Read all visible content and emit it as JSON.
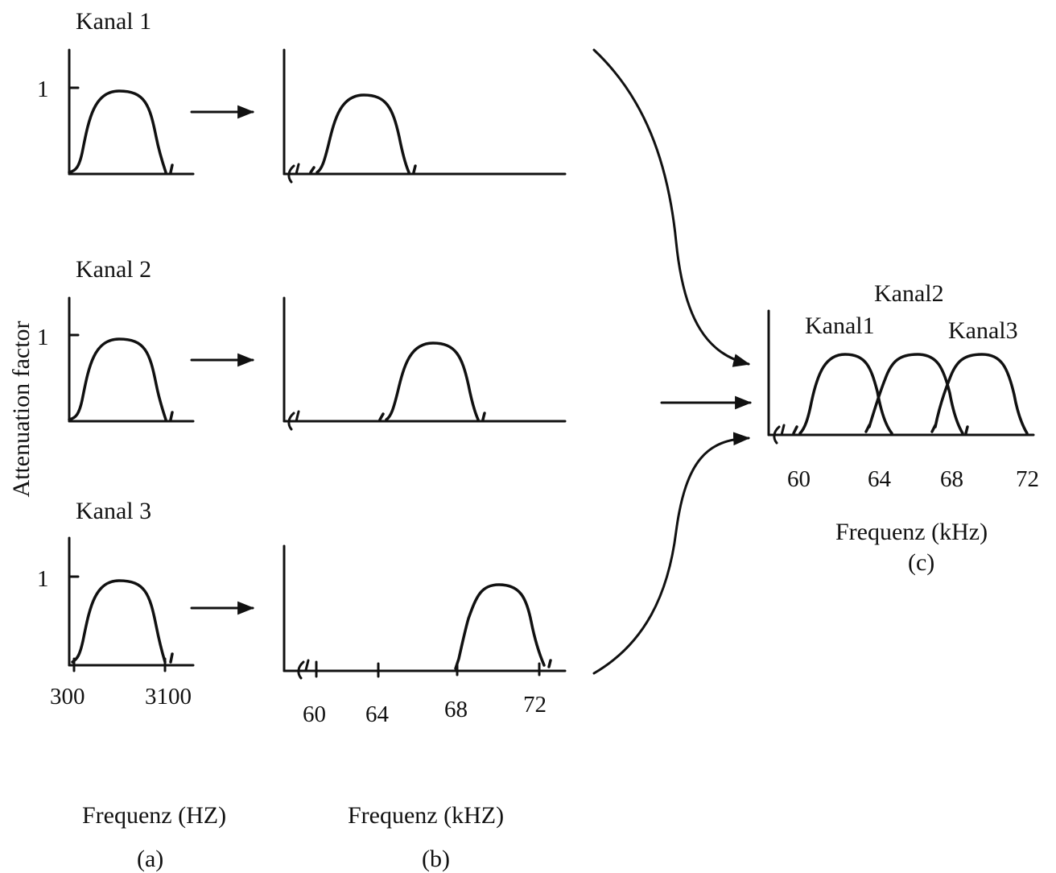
{
  "y_axis_label": "Attenuation factor",
  "panel_a": {
    "channels": [
      {
        "title": "Kanal 1",
        "y_tick": "1"
      },
      {
        "title": "Kanal 2",
        "y_tick": "1"
      },
      {
        "title": "Kanal 3",
        "y_tick": "1"
      }
    ],
    "x_ticks": [
      "300",
      "3100"
    ],
    "x_label": "Frequenz (HZ)",
    "caption": "(a)"
  },
  "panel_b": {
    "x_ticks": [
      "60",
      "64",
      "68",
      "72"
    ],
    "x_label": "Frequenz (kHZ)",
    "caption": "(b)"
  },
  "panel_c": {
    "channel_labels": [
      "Kanal1",
      "Kanal2",
      "Kanal3"
    ],
    "x_ticks": [
      "60",
      "64",
      "68",
      "72"
    ],
    "x_label": "Frequenz (kHz)",
    "caption": "(c)"
  }
}
